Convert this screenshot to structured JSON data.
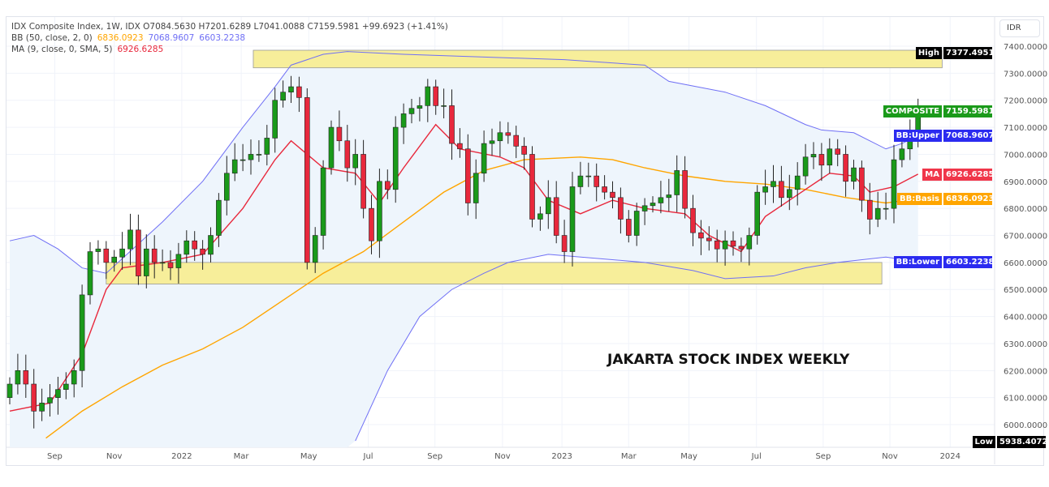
{
  "currency": "IDR",
  "legend": {
    "line1": "IDX Composite Index, 1W, IDX  O7084.5630  H7201.6289  L7041.0088  C7159.5981  +99.6923 (+1.41%)",
    "bb_label": "BB (50, close, 2, 0)",
    "bb_basis": "6836.0923",
    "bb_upper": "7068.9607",
    "bb_lower": "6603.2238",
    "ma_label": "MA (9, close, 0, SMA, 5)",
    "ma_value": "6926.6285"
  },
  "tags": [
    {
      "name": "High",
      "value": "7377.4951",
      "price": 7377.4951,
      "color": "#000000"
    },
    {
      "name": "COMPOSITE",
      "value": "7159.5981",
      "price": 7159.5981,
      "color": "#1a9a1a"
    },
    {
      "name": "BB:Upper",
      "value": "7068.9607",
      "price": 7068.9607,
      "color": "#2b2bf0"
    },
    {
      "name": "MA",
      "value": "6926.6285",
      "price": 6926.6285,
      "color": "#f0364a"
    },
    {
      "name": "BB:Basis",
      "value": "6836.0923",
      "price": 6836.0923,
      "color": "#ffa500"
    },
    {
      "name": "BB:Lower",
      "value": "6603.2238",
      "price": 6603.2238,
      "color": "#2b2bf0"
    },
    {
      "name": "Low",
      "value": "5938.4072",
      "price": 5938.4072,
      "color": "#000000"
    }
  ],
  "annotation": "JAKARTA STOCK INDEX WEEKLY",
  "chart_data": {
    "type": "candlestick",
    "title": "IDX Composite Index, 1W",
    "ylim": [
      5900,
      7420
    ],
    "yticks": [
      6000,
      6100,
      6200,
      6300,
      6400,
      6500,
      6600,
      6700,
      6800,
      6900,
      7000,
      7100,
      7200,
      7300,
      7400
    ],
    "xticks": [
      {
        "label": "Sep",
        "week": 5.6
      },
      {
        "label": "Nov",
        "week": 13
      },
      {
        "label": "2022",
        "week": 21.4
      },
      {
        "label": "Mar",
        "week": 28.8
      },
      {
        "label": "May",
        "week": 37.2
      },
      {
        "label": "Jul",
        "week": 44.6
      },
      {
        "label": "Sep",
        "week": 52.9
      },
      {
        "label": "Nov",
        "week": 61.3
      },
      {
        "label": "2023",
        "week": 68.7
      },
      {
        "label": "Mar",
        "week": 77
      },
      {
        "label": "May",
        "week": 84.5
      },
      {
        "label": "Jul",
        "week": 92.9
      },
      {
        "label": "Sep",
        "week": 101.2
      },
      {
        "label": "Nov",
        "week": 109.5
      },
      {
        "label": "2024",
        "week": 117
      }
    ],
    "first_open": 6100,
    "close": [
      6150,
      6200,
      6150,
      6050,
      6080,
      6100,
      6130,
      6150,
      6200,
      6480,
      6640,
      6650,
      6600,
      6620,
      6650,
      6720,
      6550,
      6650,
      6600,
      6600,
      6580,
      6630,
      6680,
      6650,
      6630,
      6700,
      6830,
      6930,
      6980,
      6980,
      7000,
      7000,
      7060,
      7200,
      7230,
      7250,
      7210,
      6600,
      6700,
      6950,
      7100,
      7050,
      6950,
      7000,
      6800,
      6680,
      6900,
      6870,
      7100,
      7150,
      7170,
      7180,
      7250,
      7180,
      7180,
      7040,
      7020,
      6820,
      6930,
      7040,
      7050,
      7080,
      7070,
      7030,
      7000,
      6760,
      6780,
      6840,
      6700,
      6640,
      6880,
      6920,
      6920,
      6880,
      6860,
      6840,
      6760,
      6700,
      6790,
      6810,
      6820,
      6840,
      6850,
      6940,
      6800,
      6710,
      6690,
      6680,
      6650,
      6680,
      6660,
      6650,
      6700,
      6860,
      6880,
      6900,
      6840,
      6870,
      6920,
      6990,
      7000,
      6960,
      7020,
      7000,
      6900,
      6950,
      6830,
      6760,
      6800,
      6800,
      6980,
      7020,
      7080,
      7159.5981
    ],
    "series": [
      {
        "name": "BB:Upper",
        "color": "#6f6ff5",
        "points": [
          [
            0,
            6680
          ],
          [
            3,
            6700
          ],
          [
            6,
            6650
          ],
          [
            9,
            6580
          ],
          [
            12,
            6560
          ],
          [
            19,
            6750
          ],
          [
            24,
            6900
          ],
          [
            29,
            7100
          ],
          [
            33,
            7250
          ],
          [
            35,
            7330
          ],
          [
            39,
            7370
          ],
          [
            42,
            7380
          ],
          [
            49,
            7370
          ],
          [
            59,
            7360
          ],
          [
            69,
            7350
          ],
          [
            79,
            7330
          ],
          [
            82,
            7270
          ],
          [
            89,
            7230
          ],
          [
            94,
            7180
          ],
          [
            99,
            7110
          ],
          [
            101,
            7090
          ],
          [
            105,
            7080
          ],
          [
            109,
            7020
          ],
          [
            111,
            7040
          ],
          [
            113,
            7069
          ]
        ]
      },
      {
        "name": "BB:Lower",
        "color": "#6f6ff5",
        "points": [
          [
            43,
            5940
          ],
          [
            47,
            6200
          ],
          [
            51,
            6400
          ],
          [
            55,
            6500
          ],
          [
            59,
            6560
          ],
          [
            62,
            6600
          ],
          [
            67,
            6630
          ],
          [
            79,
            6600
          ],
          [
            85,
            6570
          ],
          [
            89,
            6540
          ],
          [
            95,
            6550
          ],
          [
            99,
            6580
          ],
          [
            103,
            6600
          ],
          [
            109,
            6620
          ],
          [
            113,
            6603
          ]
        ]
      },
      {
        "name": "BB:Basis",
        "color": "#ffa500",
        "points": [
          [
            4.5,
            5950
          ],
          [
            9,
            6050
          ],
          [
            14,
            6140
          ],
          [
            19,
            6220
          ],
          [
            24,
            6280
          ],
          [
            29,
            6360
          ],
          [
            34,
            6460
          ],
          [
            39,
            6560
          ],
          [
            44,
            6640
          ],
          [
            49,
            6750
          ],
          [
            54,
            6860
          ],
          [
            59,
            6940
          ],
          [
            64,
            6980
          ],
          [
            71,
            6990
          ],
          [
            75,
            6980
          ],
          [
            79,
            6950
          ],
          [
            84,
            6920
          ],
          [
            89,
            6900
          ],
          [
            94,
            6890
          ],
          [
            99,
            6870
          ],
          [
            104,
            6840
          ],
          [
            109,
            6820
          ],
          [
            113,
            6836
          ]
        ]
      },
      {
        "name": "MA",
        "color": "#e8283c",
        "points": [
          [
            0,
            6050
          ],
          [
            5,
            6080
          ],
          [
            9,
            6260
          ],
          [
            12,
            6500
          ],
          [
            14,
            6580
          ],
          [
            19,
            6600
          ],
          [
            24,
            6630
          ],
          [
            29,
            6800
          ],
          [
            33,
            6980
          ],
          [
            35,
            7050
          ],
          [
            39,
            6950
          ],
          [
            43,
            6930
          ],
          [
            46,
            6820
          ],
          [
            49,
            6950
          ],
          [
            53,
            7110
          ],
          [
            56,
            7020
          ],
          [
            61,
            6990
          ],
          [
            64,
            6950
          ],
          [
            67,
            6830
          ],
          [
            71,
            6780
          ],
          [
            75,
            6830
          ],
          [
            79,
            6800
          ],
          [
            84,
            6780
          ],
          [
            87,
            6700
          ],
          [
            91,
            6640
          ],
          [
            94,
            6770
          ],
          [
            98,
            6850
          ],
          [
            102,
            6930
          ],
          [
            105,
            6920
          ],
          [
            107,
            6860
          ],
          [
            110,
            6880
          ],
          [
            113,
            6926.6
          ]
        ]
      }
    ],
    "zones": [
      {
        "from_week": 30.3,
        "to_week": 116,
        "low": 7320,
        "high": 7385
      },
      {
        "from_week": 12,
        "to_week": 108.5,
        "low": 6520,
        "high": 6600
      }
    ]
  }
}
